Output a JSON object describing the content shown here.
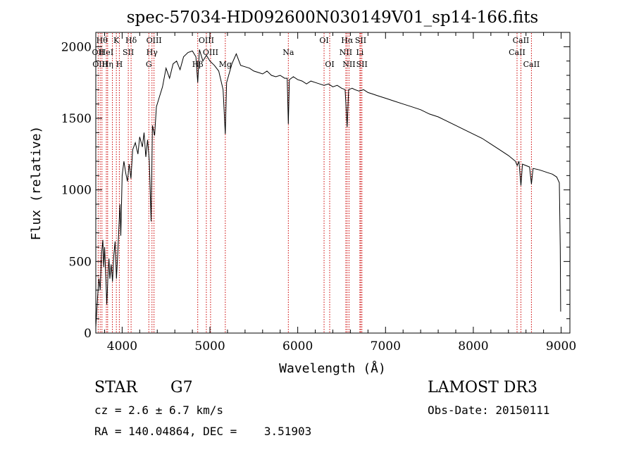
{
  "chart_data": {
    "type": "line",
    "title": "spec-57034-HD092600N030149V01_sp14-166.fits",
    "xlabel": "Wavelength (Å)",
    "ylabel": "Flux (relative)",
    "xlim": [
      3700,
      9100
    ],
    "ylim": [
      0,
      2100
    ],
    "xticks": [
      {
        "value": 4000,
        "label": "4000"
      },
      {
        "value": 5000,
        "label": "5000"
      },
      {
        "value": 6000,
        "label": "6000"
      },
      {
        "value": 7000,
        "label": "7000"
      },
      {
        "value": 8000,
        "label": "8000"
      },
      {
        "value": 9000,
        "label": "9000"
      }
    ],
    "yticks": [
      {
        "value": 0,
        "label": "0"
      },
      {
        "value": 500,
        "label": "500"
      },
      {
        "value": 1000,
        "label": "1000"
      },
      {
        "value": 1500,
        "label": "1500"
      },
      {
        "value": 2000,
        "label": "2000"
      }
    ],
    "series": [
      {
        "name": "spectrum",
        "color": "#000000",
        "points": [
          [
            3700,
            40
          ],
          [
            3720,
            250
          ],
          [
            3735,
            380
          ],
          [
            3750,
            300
          ],
          [
            3765,
            550
          ],
          [
            3780,
            650
          ],
          [
            3790,
            460
          ],
          [
            3800,
            600
          ],
          [
            3815,
            380
          ],
          [
            3825,
            200
          ],
          [
            3840,
            420
          ],
          [
            3850,
            520
          ],
          [
            3860,
            380
          ],
          [
            3875,
            480
          ],
          [
            3890,
            360
          ],
          [
            3905,
            540
          ],
          [
            3920,
            640
          ],
          [
            3935,
            380
          ],
          [
            3950,
            560
          ],
          [
            3965,
            760
          ],
          [
            3975,
            900
          ],
          [
            3985,
            680
          ],
          [
            4000,
            1100
          ],
          [
            4020,
            1200
          ],
          [
            4040,
            1120
          ],
          [
            4060,
            1060
          ],
          [
            4080,
            1180
          ],
          [
            4100,
            1080
          ],
          [
            4120,
            1280
          ],
          [
            4150,
            1330
          ],
          [
            4180,
            1250
          ],
          [
            4200,
            1370
          ],
          [
            4230,
            1300
          ],
          [
            4250,
            1400
          ],
          [
            4270,
            1230
          ],
          [
            4290,
            1350
          ],
          [
            4310,
            1200
          ],
          [
            4330,
            780
          ],
          [
            4345,
            1450
          ],
          [
            4370,
            1380
          ],
          [
            4390,
            1580
          ],
          [
            4420,
            1640
          ],
          [
            4460,
            1720
          ],
          [
            4500,
            1850
          ],
          [
            4540,
            1780
          ],
          [
            4580,
            1880
          ],
          [
            4620,
            1900
          ],
          [
            4660,
            1840
          ],
          [
            4700,
            1930
          ],
          [
            4750,
            1960
          ],
          [
            4800,
            1970
          ],
          [
            4840,
            1930
          ],
          [
            4861,
            1750
          ],
          [
            4880,
            1980
          ],
          [
            4920,
            1900
          ],
          [
            4960,
            1940
          ],
          [
            5000,
            1900
          ],
          [
            5050,
            1870
          ],
          [
            5100,
            1830
          ],
          [
            5150,
            1700
          ],
          [
            5175,
            1390
          ],
          [
            5190,
            1750
          ],
          [
            5250,
            1880
          ],
          [
            5300,
            1950
          ],
          [
            5350,
            1870
          ],
          [
            5400,
            1860
          ],
          [
            5450,
            1850
          ],
          [
            5500,
            1830
          ],
          [
            5550,
            1820
          ],
          [
            5600,
            1810
          ],
          [
            5650,
            1830
          ],
          [
            5700,
            1800
          ],
          [
            5750,
            1790
          ],
          [
            5800,
            1800
          ],
          [
            5850,
            1780
          ],
          [
            5880,
            1780
          ],
          [
            5893,
            1460
          ],
          [
            5905,
            1770
          ],
          [
            5950,
            1790
          ],
          [
            6000,
            1770
          ],
          [
            6050,
            1760
          ],
          [
            6100,
            1740
          ],
          [
            6150,
            1760
          ],
          [
            6200,
            1750
          ],
          [
            6250,
            1740
          ],
          [
            6300,
            1730
          ],
          [
            6350,
            1740
          ],
          [
            6400,
            1720
          ],
          [
            6450,
            1730
          ],
          [
            6500,
            1710
          ],
          [
            6540,
            1700
          ],
          [
            6563,
            1440
          ],
          [
            6580,
            1700
          ],
          [
            6620,
            1710
          ],
          [
            6650,
            1700
          ],
          [
            6700,
            1690
          ],
          [
            6750,
            1700
          ],
          [
            6800,
            1680
          ],
          [
            6850,
            1670
          ],
          [
            6900,
            1660
          ],
          [
            6950,
            1650
          ],
          [
            7000,
            1640
          ],
          [
            7100,
            1620
          ],
          [
            7200,
            1600
          ],
          [
            7300,
            1580
          ],
          [
            7400,
            1560
          ],
          [
            7500,
            1530
          ],
          [
            7600,
            1510
          ],
          [
            7700,
            1480
          ],
          [
            7800,
            1450
          ],
          [
            7900,
            1420
          ],
          [
            8000,
            1390
          ],
          [
            8100,
            1360
          ],
          [
            8200,
            1320
          ],
          [
            8300,
            1280
          ],
          [
            8400,
            1240
          ],
          [
            8480,
            1200
          ],
          [
            8500,
            1170
          ],
          [
            8520,
            1200
          ],
          [
            8542,
            1030
          ],
          [
            8560,
            1180
          ],
          [
            8600,
            1170
          ],
          [
            8640,
            1160
          ],
          [
            8662,
            1040
          ],
          [
            8680,
            1150
          ],
          [
            8750,
            1140
          ],
          [
            8800,
            1130
          ],
          [
            8850,
            1120
          ],
          [
            8900,
            1110
          ],
          [
            8950,
            1090
          ],
          [
            8980,
            1050
          ],
          [
            8990,
            600
          ],
          [
            8995,
            150
          ]
        ]
      }
    ],
    "lines": [
      {
        "wavelength": 3727,
        "label": "OII",
        "row": 1
      },
      {
        "wavelength": 3750,
        "label": "OIII",
        "row": 2
      },
      {
        "wavelength": 3770,
        "label": "Hθ",
        "row": 0
      },
      {
        "wavelength": 3820,
        "label": "HeI",
        "row": 1
      },
      {
        "wavelength": 3835,
        "label": "Hη",
        "row": 2
      },
      {
        "wavelength": 3889,
        "label": "",
        "row": 1
      },
      {
        "wavelength": 3934,
        "label": "K",
        "row": 0
      },
      {
        "wavelength": 3968,
        "label": "H",
        "row": 2
      },
      {
        "wavelength": 4070,
        "label": "SII",
        "row": 1
      },
      {
        "wavelength": 4102,
        "label": "Hδ",
        "row": 0
      },
      {
        "wavelength": 4304,
        "label": "G",
        "row": 2
      },
      {
        "wavelength": 4340,
        "label": "Hγ",
        "row": 1
      },
      {
        "wavelength": 4363,
        "label": "OIII",
        "row": 0
      },
      {
        "wavelength": 4861,
        "label": "Hβ",
        "row": 2
      },
      {
        "wavelength": 4959,
        "label": "OIII",
        "row": 0
      },
      {
        "wavelength": 5007,
        "label": "OIII",
        "row": 1
      },
      {
        "wavelength": 5175,
        "label": "Mg",
        "row": 2
      },
      {
        "wavelength": 5893,
        "label": "Na",
        "row": 1
      },
      {
        "wavelength": 6300,
        "label": "OI",
        "row": 0
      },
      {
        "wavelength": 6364,
        "label": "OI",
        "row": 2
      },
      {
        "wavelength": 6548,
        "label": "NII",
        "row": 1
      },
      {
        "wavelength": 6563,
        "label": "Hα",
        "row": 0
      },
      {
        "wavelength": 6584,
        "label": "NII",
        "row": 2
      },
      {
        "wavelength": 6708,
        "label": "Li",
        "row": 1
      },
      {
        "wavelength": 6717,
        "label": "SII",
        "row": 0
      },
      {
        "wavelength": 6731,
        "label": "SII",
        "row": 2
      },
      {
        "wavelength": 8498,
        "label": "CaII",
        "row": 1
      },
      {
        "wavelength": 8542,
        "label": "CaII",
        "row": 0
      },
      {
        "wavelength": 8662,
        "label": "CaII",
        "row": 2
      }
    ],
    "line_color": "#cc0000",
    "grid": false,
    "legend": "none"
  },
  "info": {
    "object_class": "STAR",
    "subclass": "G7",
    "survey": "LAMOST DR3",
    "cz": "cz = 2.6 ± 6.7 km/s",
    "obs_date": "Obs-Date: 20150111",
    "coords": "RA = 140.04864, DEC =    3.51903"
  }
}
